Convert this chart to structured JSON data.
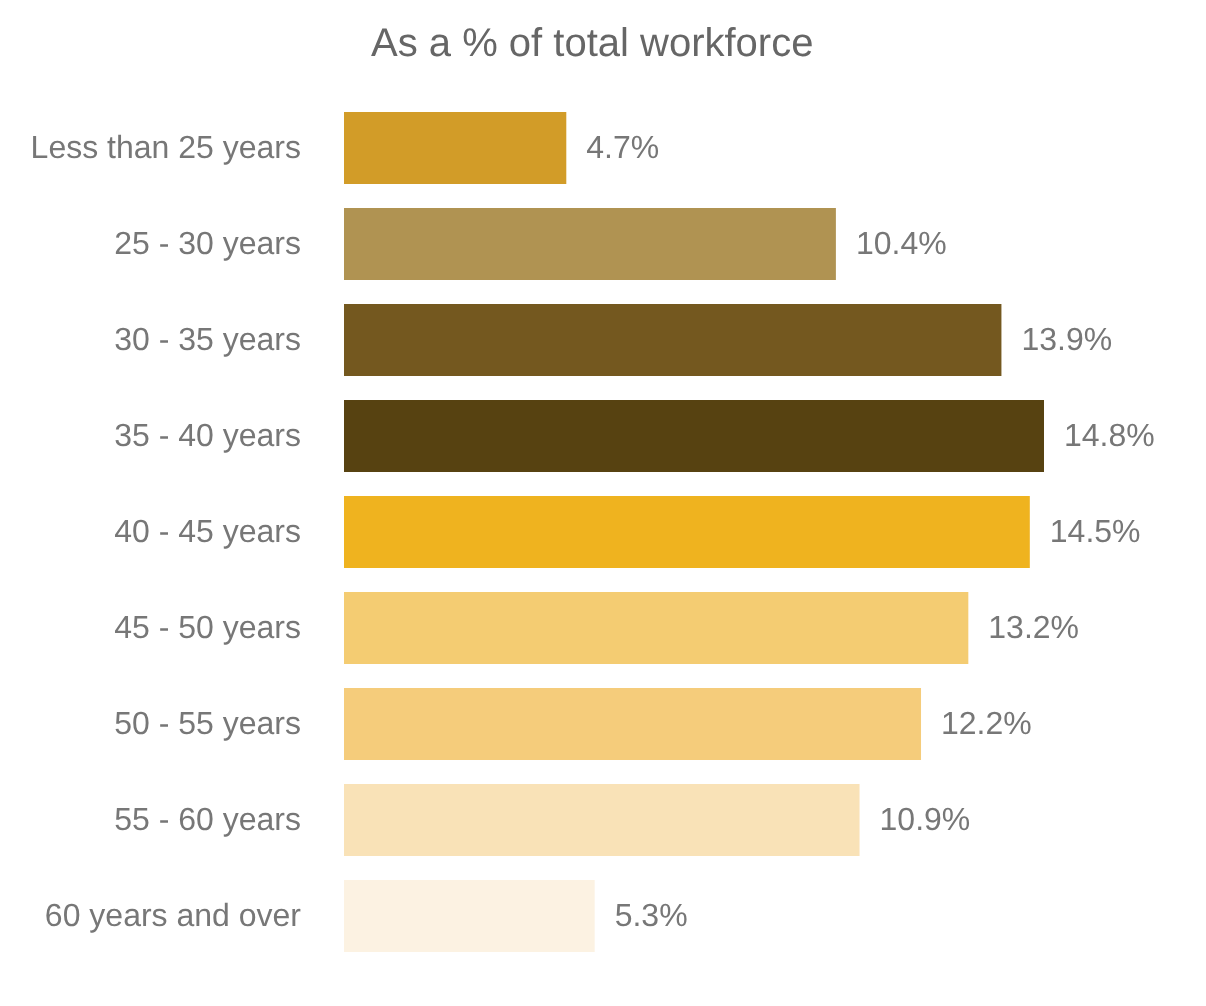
{
  "chart_data": {
    "type": "bar",
    "orientation": "horizontal",
    "title": "As a % of total workforce",
    "categories": [
      "Less than 25 years",
      "25 - 30 years",
      "30 - 35 years",
      "35 - 40 years",
      "40 - 45 years",
      "45 - 50 years",
      "50 - 55 years",
      "55 - 60 years",
      "60 years and over"
    ],
    "values": [
      4.7,
      10.4,
      13.9,
      14.8,
      14.5,
      13.2,
      12.2,
      10.9,
      5.3
    ],
    "colors": [
      "#d29c28",
      "#b09352",
      "#74581f",
      "#574211",
      "#efb31f",
      "#f4cc72",
      "#f5cc7b",
      "#f9e2b7",
      "#fcf2e2"
    ],
    "value_labels": [
      "4.7%",
      "10.4%",
      "13.9%",
      "14.8%",
      "14.5%",
      "13.2%",
      "12.2%",
      "10.9%",
      "5.3%"
    ],
    "tick_labels": "y"
  }
}
